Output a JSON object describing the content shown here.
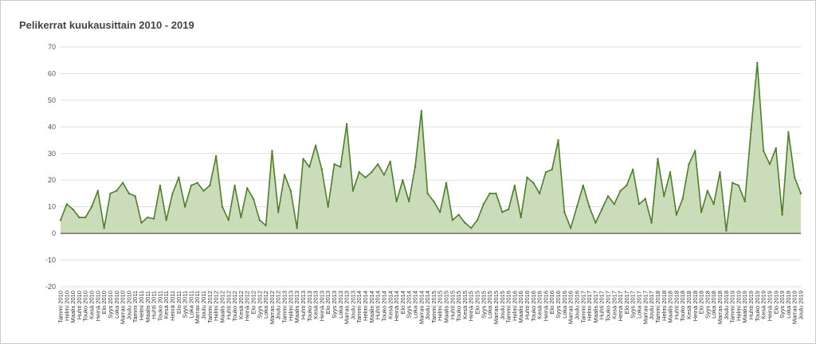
{
  "chart_data": {
    "type": "area",
    "title": "Pelikerrat kuukausittain 2010 - 2019",
    "categories": [
      "Tammi 2010",
      "Helmi 2010",
      "Maalis 2010",
      "Huhti 2010",
      "Touko 2010",
      "Kesä 2010",
      "Heinä 2010",
      "Elo 2010",
      "Syys 2010",
      "Loka 2010",
      "Marras 2010",
      "Joulu 2010",
      "Tammi 2011",
      "Helmi 2011",
      "Maalis 2011",
      "Huhti 2011",
      "Touko 2011",
      "Kesä 2011",
      "Heinä 2011",
      "Elo 2011",
      "Syys 2011",
      "Loka 2011",
      "Marras 2011",
      "Joulu 2011",
      "Tammi 2012",
      "Helmi 2012",
      "Maalis 2012",
      "Huhti 2012",
      "Touko 2012",
      "Kesä 2012",
      "Heinä 2012",
      "Elo 2012",
      "Syys 2012",
      "Loka 2012",
      "Marras 2012",
      "Joulu 2012",
      "Tammi 2013",
      "Helmi 2013",
      "Maalis 2013",
      "Huhti 2013",
      "Touko 2013",
      "Kesä 2013",
      "Heinä 2013",
      "Elo 2013",
      "Syys 2013",
      "Loka 2013",
      "Marras 2013",
      "Joulu 2013",
      "Tammi 2014",
      "Helmi 2014",
      "Maalis 2014",
      "Huhti 2014",
      "Touko 2014",
      "Kesä 2014",
      "Heinä 2014",
      "Elo 2014",
      "Syys 2014",
      "Loka 2014",
      "Marras 2014",
      "Joulu 2014",
      "Tammi 2015",
      "Helmi 2015",
      "Maalis 2015",
      "Huhti 2015",
      "Touko 2015",
      "Kesä 2015",
      "Heinä 2015",
      "Elo 2015",
      "Syys 2015",
      "Loka 2015",
      "Marras 2015",
      "Joulu 2015",
      "Tammi 2016",
      "Helmi 2016",
      "Maalis 2016",
      "Huhti 2016",
      "Touko 2016",
      "Kesä 2016",
      "Heinä 2016",
      "Elo 2016",
      "Syys 2016",
      "Loka 2016",
      "Marras 2016",
      "Joulu 2016",
      "Tammi 2017",
      "Helmi 2017",
      "Maalis 2017",
      "Huhti 2017",
      "Touko 2017",
      "Kesä 2017",
      "Heinä 2017",
      "Elo 2017",
      "Syys 2017",
      "Loka 2017",
      "Marras 2017",
      "Joulu 2017",
      "Tammi 2018",
      "Helmi 2018",
      "Maalis 2018",
      "Huhti 2018",
      "Touko 2018",
      "Kesä 2018",
      "Heinä 2018",
      "Elo 2018",
      "Syys 2018",
      "Loka 2018",
      "Marras 2018",
      "Joulu 2018",
      "Tammi 2019",
      "Helmi 2019",
      "Maalis 2019",
      "Huhti 2019",
      "Touko 2019",
      "Kesä 2019",
      "Heinä 2019",
      "Elo 2019",
      "Syys 2019",
      "Loka 2019",
      "Marras 2019",
      "Joulu 2019"
    ],
    "values": [
      5,
      11,
      9,
      6,
      6,
      10,
      16,
      2,
      15,
      16,
      19,
      15,
      14,
      4,
      6,
      5.5,
      18,
      5,
      15,
      21,
      10,
      18,
      19,
      16,
      18,
      29,
      10,
      5,
      18,
      6,
      17,
      13,
      5,
      3,
      31,
      8,
      22,
      16,
      2,
      28,
      25,
      33,
      24,
      10,
      26,
      25,
      41,
      16,
      23,
      21,
      23,
      26,
      22,
      27,
      12,
      20,
      12,
      25,
      46,
      15,
      12,
      8,
      19,
      5,
      7,
      4,
      2,
      5,
      11,
      15,
      15,
      8,
      9,
      18,
      6,
      21,
      19,
      15,
      23,
      24,
      35,
      8,
      2,
      10,
      18,
      10,
      4,
      9,
      14,
      11,
      16,
      18,
      24,
      11,
      13,
      4,
      28,
      14,
      23,
      7,
      13,
      26,
      31,
      8,
      16,
      11,
      23,
      1,
      19,
      18,
      12,
      39,
      64,
      31,
      26,
      32,
      7,
      38,
      21,
      15
    ],
    "color": "#4f7d2c",
    "fill": "#c5d8b4",
    "ylim": [
      -20,
      70
    ],
    "yticks": [
      -20,
      -10,
      0,
      10,
      20,
      30,
      40,
      50,
      60,
      70
    ],
    "grid": true
  }
}
